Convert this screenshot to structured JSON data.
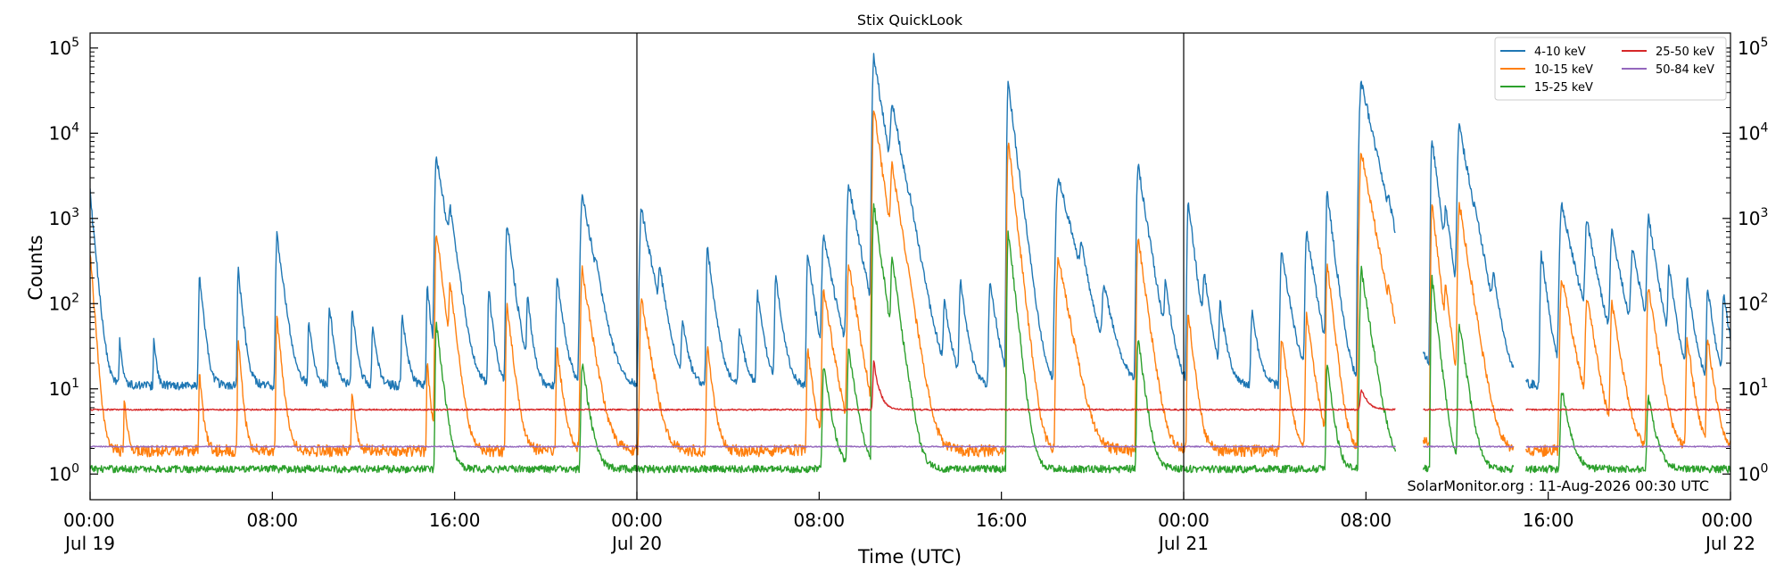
{
  "chart_data": {
    "type": "line",
    "title": "Stix QuickLook",
    "xlabel": "Time (UTC)",
    "ylabel": "Counts",
    "y_scale": "log",
    "ylim": [
      0.5,
      150000
    ],
    "xlim_hours": [
      0,
      72
    ],
    "grid": false,
    "legend_position": "top-right",
    "watermark": "SolarMonitor.org : 11-Aug-2026 00:30 UTC",
    "x_ticks": [
      {
        "hour": 0,
        "time": "00:00",
        "date": "Jul 19"
      },
      {
        "hour": 8,
        "time": "08:00",
        "date": ""
      },
      {
        "hour": 16,
        "time": "16:00",
        "date": ""
      },
      {
        "hour": 24,
        "time": "00:00",
        "date": "Jul 20"
      },
      {
        "hour": 32,
        "time": "08:00",
        "date": ""
      },
      {
        "hour": 40,
        "time": "16:00",
        "date": ""
      },
      {
        "hour": 48,
        "time": "00:00",
        "date": "Jul 21"
      },
      {
        "hour": 56,
        "time": "08:00",
        "date": ""
      },
      {
        "hour": 64,
        "time": "16:00",
        "date": ""
      },
      {
        "hour": 72,
        "time": "00:00",
        "date": "Jul 22"
      }
    ],
    "y_ticks": [
      {
        "exp": 0,
        "base": "10",
        "sup": "0"
      },
      {
        "exp": 1,
        "base": "10",
        "sup": "1"
      },
      {
        "exp": 2,
        "base": "10",
        "sup": "2"
      },
      {
        "exp": 3,
        "base": "10",
        "sup": "3"
      },
      {
        "exp": 4,
        "base": "10",
        "sup": "4"
      },
      {
        "exp": 5,
        "base": "10",
        "sup": "5"
      }
    ],
    "day_boundaries_hours": [
      24,
      48
    ],
    "data_gaps_hours": [
      [
        57.3,
        58.5
      ],
      [
        62.5,
        63.0
      ]
    ],
    "series": [
      {
        "name": "4-10 keV",
        "color": "#1f77b4",
        "baseline": 11,
        "noise": 0.12,
        "peaks": [
          [
            0.0,
            2000,
            0.15
          ],
          [
            1.3,
            40,
            0.1
          ],
          [
            2.8,
            40,
            0.1
          ],
          [
            4.8,
            220,
            0.15
          ],
          [
            6.5,
            260,
            0.15
          ],
          [
            8.2,
            650,
            0.2
          ],
          [
            9.6,
            60,
            0.15
          ],
          [
            10.5,
            100,
            0.15
          ],
          [
            11.5,
            90,
            0.15
          ],
          [
            12.4,
            60,
            0.15
          ],
          [
            13.7,
            80,
            0.15
          ],
          [
            14.8,
            160,
            0.15
          ],
          [
            15.2,
            5500,
            0.25
          ],
          [
            15.8,
            900,
            0.2
          ],
          [
            17.5,
            150,
            0.15
          ],
          [
            18.3,
            900,
            0.2
          ],
          [
            19.2,
            120,
            0.15
          ],
          [
            20.5,
            200,
            0.2
          ],
          [
            21.6,
            1900,
            0.3
          ],
          [
            22.2,
            90,
            0.15
          ],
          [
            24.2,
            1300,
            0.3
          ],
          [
            25.0,
            200,
            0.2
          ],
          [
            26.0,
            60,
            0.2
          ],
          [
            27.1,
            450,
            0.2
          ],
          [
            28.5,
            50,
            0.2
          ],
          [
            29.3,
            130,
            0.2
          ],
          [
            30.1,
            200,
            0.2
          ],
          [
            31.5,
            400,
            0.2
          ],
          [
            32.2,
            600,
            0.3
          ],
          [
            33.3,
            2500,
            0.3
          ],
          [
            34.4,
            80000,
            0.25
          ],
          [
            35.2,
            20000,
            0.3
          ],
          [
            36.0,
            300,
            0.2
          ],
          [
            37.5,
            100,
            0.2
          ],
          [
            38.2,
            180,
            0.2
          ],
          [
            39.5,
            200,
            0.2
          ],
          [
            40.3,
            38000,
            0.2
          ],
          [
            41.0,
            150,
            0.2
          ],
          [
            42.5,
            3000,
            0.4
          ],
          [
            43.5,
            300,
            0.2
          ],
          [
            44.5,
            150,
            0.3
          ],
          [
            46.0,
            4300,
            0.25
          ],
          [
            47.2,
            150,
            0.2
          ],
          [
            48.2,
            1500,
            0.2
          ],
          [
            48.9,
            200,
            0.2
          ],
          [
            49.6,
            100,
            0.2
          ],
          [
            51.0,
            80,
            0.2
          ],
          [
            52.3,
            400,
            0.25
          ],
          [
            53.4,
            700,
            0.25
          ],
          [
            54.3,
            2000,
            0.2
          ],
          [
            55.8,
            40000,
            0.35
          ],
          [
            56.5,
            150,
            0.2
          ],
          [
            57.0,
            500,
            0.2
          ],
          [
            58.9,
            8500,
            0.2
          ],
          [
            59.5,
            1000,
            0.2
          ],
          [
            60.1,
            12000,
            0.3
          ],
          [
            60.8,
            200,
            0.2
          ],
          [
            61.6,
            150,
            0.2
          ],
          [
            63.7,
            400,
            0.2
          ],
          [
            64.6,
            1400,
            0.35
          ],
          [
            65.7,
            900,
            0.3
          ],
          [
            66.8,
            700,
            0.3
          ],
          [
            67.7,
            400,
            0.3
          ],
          [
            68.4,
            1000,
            0.25
          ],
          [
            69.3,
            250,
            0.2
          ],
          [
            70.1,
            200,
            0.2
          ],
          [
            71.0,
            150,
            0.2
          ],
          [
            71.7,
            130,
            0.2
          ]
        ]
      },
      {
        "name": "10-15 keV",
        "color": "#ff7f0e",
        "baseline": 1.9,
        "noise": 0.16,
        "peaks": [
          [
            0.0,
            400,
            0.12
          ],
          [
            1.5,
            8,
            0.1
          ],
          [
            4.8,
            15,
            0.12
          ],
          [
            6.5,
            40,
            0.12
          ],
          [
            8.2,
            70,
            0.15
          ],
          [
            11.5,
            10,
            0.12
          ],
          [
            14.8,
            20,
            0.12
          ],
          [
            15.2,
            700,
            0.2
          ],
          [
            15.8,
            150,
            0.18
          ],
          [
            18.3,
            100,
            0.18
          ],
          [
            20.5,
            30,
            0.18
          ],
          [
            21.6,
            250,
            0.25
          ],
          [
            24.2,
            120,
            0.25
          ],
          [
            27.1,
            30,
            0.18
          ],
          [
            31.5,
            30,
            0.18
          ],
          [
            32.2,
            150,
            0.25
          ],
          [
            33.3,
            300,
            0.25
          ],
          [
            34.4,
            20000,
            0.22
          ],
          [
            35.2,
            4000,
            0.25
          ],
          [
            40.3,
            8000,
            0.18
          ],
          [
            42.5,
            350,
            0.3
          ],
          [
            46.0,
            600,
            0.22
          ],
          [
            48.2,
            80,
            0.18
          ],
          [
            52.3,
            40,
            0.2
          ],
          [
            53.4,
            80,
            0.2
          ],
          [
            54.3,
            300,
            0.18
          ],
          [
            55.8,
            6000,
            0.3
          ],
          [
            57.0,
            60,
            0.18
          ],
          [
            58.9,
            1500,
            0.18
          ],
          [
            59.5,
            120,
            0.18
          ],
          [
            60.1,
            1500,
            0.25
          ],
          [
            64.6,
            200,
            0.3
          ],
          [
            65.7,
            120,
            0.25
          ],
          [
            66.8,
            100,
            0.25
          ],
          [
            68.4,
            150,
            0.25
          ],
          [
            70.1,
            40,
            0.2
          ],
          [
            71.0,
            40,
            0.2
          ]
        ]
      },
      {
        "name": "15-25 keV",
        "color": "#2ca02c",
        "baseline": 1.15,
        "noise": 0.1,
        "peaks": [
          [
            15.2,
            60,
            0.18
          ],
          [
            21.6,
            20,
            0.22
          ],
          [
            32.2,
            20,
            0.22
          ],
          [
            33.3,
            30,
            0.22
          ],
          [
            34.4,
            1500,
            0.22
          ],
          [
            35.2,
            300,
            0.22
          ],
          [
            40.3,
            700,
            0.18
          ],
          [
            46.0,
            40,
            0.2
          ],
          [
            54.3,
            20,
            0.18
          ],
          [
            55.8,
            250,
            0.25
          ],
          [
            58.9,
            200,
            0.18
          ],
          [
            60.1,
            60,
            0.22
          ],
          [
            64.6,
            10,
            0.25
          ],
          [
            68.4,
            8,
            0.25
          ]
        ]
      },
      {
        "name": "25-50 keV",
        "color": "#d62728",
        "baseline": 5.7,
        "noise": 0.02,
        "peaks": [
          [
            34.4,
            20,
            0.2
          ],
          [
            55.8,
            10,
            0.25
          ]
        ]
      },
      {
        "name": "50-84 keV",
        "color": "#9467bd",
        "baseline": 2.1,
        "noise": 0.015,
        "peaks": []
      }
    ]
  }
}
